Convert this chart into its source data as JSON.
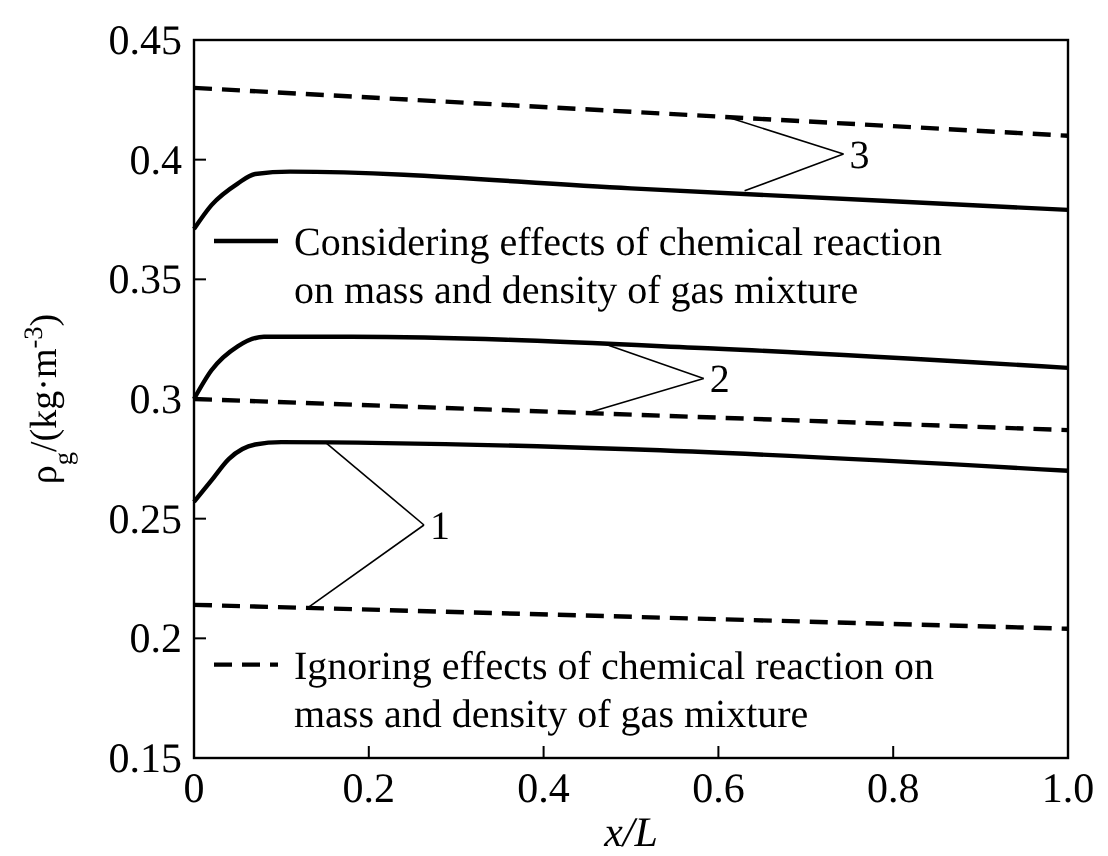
{
  "chart_data": {
    "type": "line",
    "xlabel": "x/L",
    "ylabel": "ρ$_{g}$/(kg·m$^{-3}$)",
    "xlim": [
      0,
      1
    ],
    "ylim": [
      0.15,
      0.45
    ],
    "xticks": [
      0,
      0.2,
      0.4,
      0.6,
      0.8,
      {
        "value": 1,
        "label": "1.0"
      }
    ],
    "yticks": [
      0.15,
      0.2,
      0.25,
      0.3,
      0.35,
      0.4,
      0.45
    ],
    "grid": false,
    "legend": "left",
    "marker": "none",
    "series": [
      {
        "color": "#000000",
        "line_style": "solid",
        "x": [
          0,
          0.02,
          0.04,
          0.07,
          0.1,
          0.5,
          1
        ],
        "values": [
          0.257,
          0.266,
          0.275,
          0.281,
          0.282,
          0.279,
          0.27
        ]
      },
      {
        "color": "#000000",
        "line_style": "solid",
        "x": [
          0,
          0.02,
          0.05,
          0.08,
          0.18,
          0.6,
          1
        ],
        "values": [
          0.3,
          0.312,
          0.322,
          0.326,
          0.326,
          0.321,
          0.313
        ]
      },
      {
        "name": "Considering effects of chemical reaction on mass and density of gas mixture",
        "color": "#000000",
        "line_style": "solid",
        "x": [
          0,
          0.02,
          0.05,
          0.07,
          0.11,
          0.5,
          1
        ],
        "values": [
          0.371,
          0.381,
          0.39,
          0.394,
          0.395,
          0.388,
          0.379
        ]
      },
      {
        "name": "Ignoring effects of chemical reaction on mass and density of gas mixture",
        "color": "#000000",
        "line_style": "dashed",
        "x": [
          0,
          1
        ],
        "values": [
          0.214,
          0.204
        ]
      },
      {
        "color": "#000000",
        "line_style": "dashed",
        "x": [
          0,
          1
        ],
        "values": [
          0.3,
          0.287
        ]
      },
      {
        "color": "#000000",
        "line_style": "dashed",
        "x": [
          0,
          1
        ],
        "values": [
          0.43,
          0.41
        ]
      }
    ],
    "annotations": [
      {
        "text": "1",
        "x": 0.15,
        "y": 0.282
      },
      {
        "text": "2",
        "x": 0.47,
        "y": 0.323
      },
      {
        "text": "3",
        "x": 0.63,
        "y": 0.387
      }
    ]
  }
}
